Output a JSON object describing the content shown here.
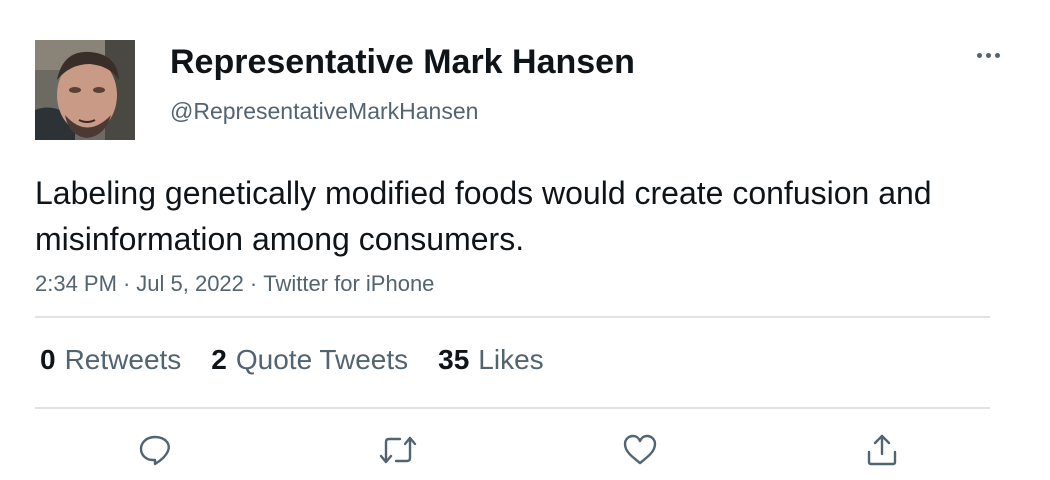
{
  "author": {
    "display_name": "Representative Mark Hansen",
    "handle": "@RepresentativeMarkHansen",
    "avatar_icon": "profile-photo"
  },
  "tweet": {
    "text": "Labeling genetically modified foods would create confusion and misinformation among consumers.",
    "time": "2:34 PM",
    "date": "Jul 5, 2022",
    "source": "Twitter for iPhone",
    "separator": "·"
  },
  "stats": {
    "retweets_count": "0",
    "retweets_label": "Retweets",
    "quote_tweets_count": "2",
    "quote_tweets_label": "Quote Tweets",
    "likes_count": "35",
    "likes_label": "Likes"
  },
  "actions": {
    "reply_icon": "reply-icon",
    "retweet_icon": "retweet-icon",
    "like_icon": "like-icon",
    "share_icon": "share-icon"
  },
  "colors": {
    "text_primary": "#0f1419",
    "text_secondary": "#536471",
    "divider": "#dfe3e6"
  }
}
